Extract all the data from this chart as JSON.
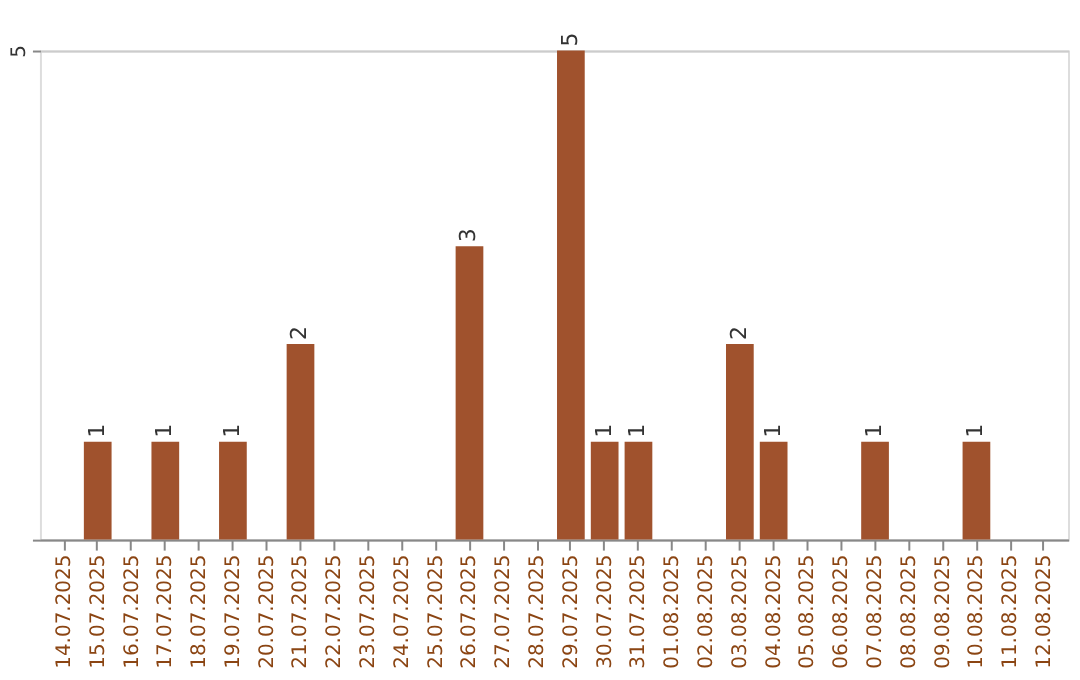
{
  "chart_data": {
    "type": "bar",
    "categories": [
      "14.07.2025",
      "15.07.2025",
      "16.07.2025",
      "17.07.2025",
      "18.07.2025",
      "19.07.2025",
      "20.07.2025",
      "21.07.2025",
      "22.07.2025",
      "23.07.2025",
      "24.07.2025",
      "25.07.2025",
      "26.07.2025",
      "27.07.2025",
      "28.07.2025",
      "29.07.2025",
      "30.07.2025",
      "31.07.2025",
      "01.08.2025",
      "02.08.2025",
      "03.08.2025",
      "04.08.2025",
      "05.08.2025",
      "06.08.2025",
      "07.08.2025",
      "08.08.2025",
      "09.08.2025",
      "10.08.2025",
      "11.08.2025",
      "12.08.2025"
    ],
    "values": [
      0,
      1,
      0,
      1,
      0,
      1,
      0,
      2,
      0,
      0,
      0,
      0,
      3,
      0,
      0,
      5,
      1,
      1,
      0,
      0,
      2,
      1,
      0,
      0,
      1,
      0,
      0,
      1,
      0,
      0
    ],
    "value_labels": [
      null,
      "1",
      null,
      "1",
      null,
      "1",
      null,
      "2",
      null,
      null,
      null,
      null,
      "3",
      null,
      null,
      "5",
      "1",
      "1",
      null,
      null,
      "2",
      "1",
      null,
      null,
      "1",
      null,
      null,
      "1",
      null,
      null
    ],
    "color": "#a0522d",
    "ylim": [
      0,
      5
    ],
    "yticks": [
      {
        "value": 0,
        "label": null
      },
      5
    ],
    "grid": "y"
  }
}
